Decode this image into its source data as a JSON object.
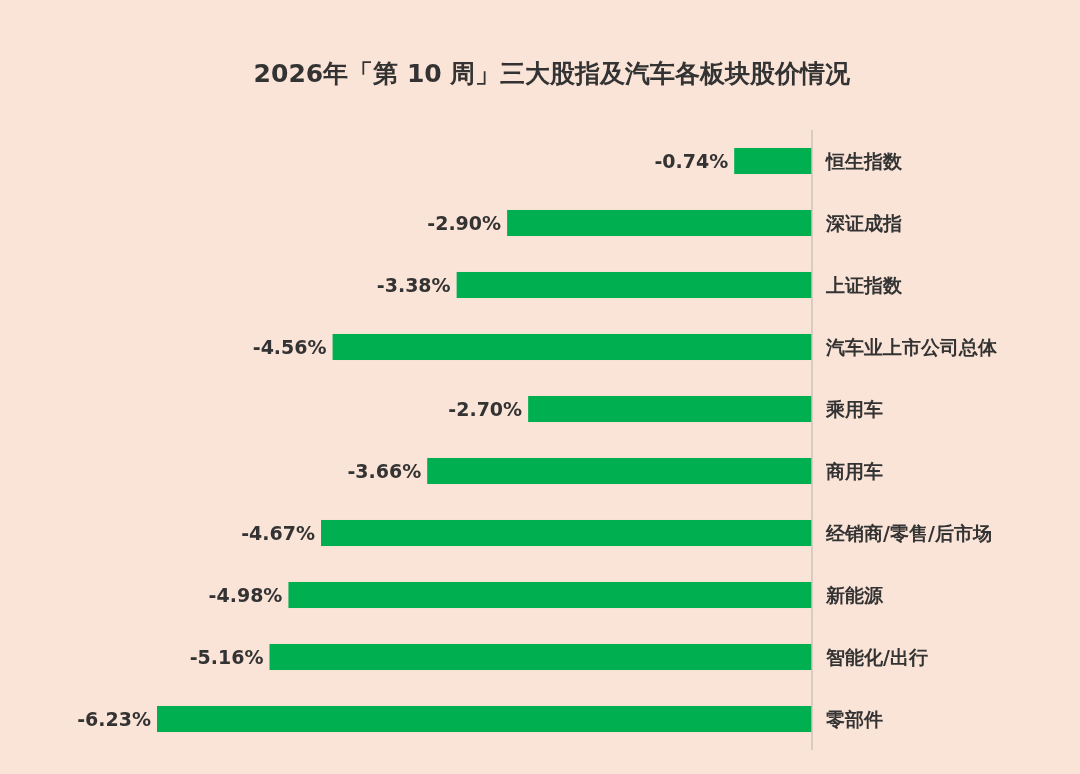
{
  "chart_data": {
    "type": "bar",
    "orientation": "horizontal",
    "title": "2026年「第 10 周」三大股指及汽车各板块股价情况",
    "categories": [
      "恒生指数",
      "深证成指",
      "上证指数",
      "汽车业上市公司总体",
      "乘用车",
      "商用车",
      "经销商/零售/后市场",
      "新能源",
      "智能化/出行",
      "零部件"
    ],
    "values": [
      -0.74,
      -2.9,
      -3.38,
      -4.56,
      -2.7,
      -3.66,
      -4.67,
      -4.98,
      -5.16,
      -6.23
    ],
    "value_labels": [
      "-0.74%",
      "-2.90%",
      "-3.38%",
      "-4.56%",
      "-2.70%",
      "-3.66%",
      "-4.67%",
      "-4.98%",
      "-5.16%",
      "-6.23%"
    ],
    "color": "#00b050"
  }
}
